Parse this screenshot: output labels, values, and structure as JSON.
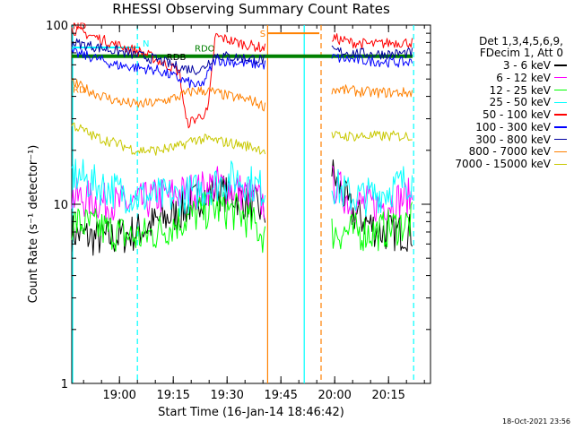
{
  "chart_data": {
    "type": "line",
    "title": "RHESSI Observing Summary Count Rates",
    "xlabel": "Start Time (16-Jan-14 18:46:42)",
    "ylabel": "Count Rate (s⁻¹ detector⁻¹)",
    "y_scale": "log",
    "ylim": [
      1,
      100
    ],
    "xlim_minutes_after_start": [
      0,
      100
    ],
    "x_tick_labels": [
      "19:00",
      "19:15",
      "19:30",
      "19:45",
      "20:00",
      "20:15"
    ],
    "y_tick_labels": [
      "1",
      "10",
      "100"
    ],
    "legend_header": [
      "Det 1,3,4,5,6,9,",
      "FDecim 1, Att 0"
    ],
    "legend_position": "right",
    "timestamp": "18-Oct-2021 23:56",
    "flag_labels": {
      "N": "N",
      "S": "S",
      "RDO": "RDO",
      "RD": "RD",
      "ND": "ND",
      "RDB": "RDB"
    },
    "data_gaps_minutes": [
      [
        54.6,
        72.5
      ]
    ],
    "series": [
      {
        "name": "3 - 6 keV",
        "color": "#000000",
        "segments": [
          {
            "x": [
              0,
              6,
              12,
              18,
              24,
              30,
              36,
              40,
              46,
              50,
              54
            ],
            "y": [
              7,
              6.5,
              6.5,
              7,
              8,
              9,
              11,
              12,
              11,
              10,
              9
            ]
          },
          {
            "x": [
              72.5,
              75,
              78,
              82,
              86,
              90,
              95
            ],
            "y": [
              15,
              12,
              9,
              8,
              7,
              7,
              7
            ]
          }
        ]
      },
      {
        "name": "6 - 12 keV",
        "color": "#ff00ff",
        "segments": [
          {
            "x": [
              0,
              6,
              12,
              18,
              24,
              30,
              36,
              40,
              46,
              50,
              54
            ],
            "y": [
              11,
              10.5,
              10,
              10,
              11,
              11.5,
              12,
              13,
              12,
              11,
              10
            ]
          },
          {
            "x": [
              72.5,
              75,
              78,
              82,
              86,
              90,
              95
            ],
            "y": [
              13,
              12,
              10,
              10,
              10,
              10.5,
              11
            ]
          }
        ]
      },
      {
        "name": "12 - 25 keV",
        "color": "#00ff00",
        "segments": [
          {
            "x": [
              0,
              6,
              12,
              18,
              24,
              30,
              36,
              40,
              46,
              50,
              54
            ],
            "y": [
              8,
              7.5,
              7,
              6.5,
              7,
              8,
              9,
              9.5,
              9,
              8,
              6.5
            ]
          },
          {
            "x": [
              72.5,
              76,
              80,
              85,
              90,
              95
            ],
            "y": [
              7,
              7,
              7,
              7,
              7.5,
              8
            ]
          }
        ]
      },
      {
        "name": "25 - 50 keV",
        "color": "#00ffff",
        "segments": [
          {
            "x": [
              0,
              6,
              12,
              18,
              24,
              30,
              36,
              40,
              46,
              50,
              54
            ],
            "y": [
              15,
              13,
              12,
              11,
              11,
              11,
              12,
              13,
              14,
              13,
              12
            ]
          },
          {
            "x": [
              72.5,
              75,
              78,
              82,
              86,
              90,
              95
            ],
            "y": [
              13,
              12,
              11,
              11,
              11.5,
              12.5,
              14
            ]
          }
        ]
      },
      {
        "name": "50 - 100 keV",
        "color": "#ff0000",
        "segments": [
          {
            "x": [
              0,
              5,
              12,
              20,
              30,
              32,
              38,
              40,
              46,
              54
            ],
            "y": [
              95,
              88,
              78,
              70,
              55,
              28,
              33,
              87,
              80,
              74
            ]
          },
          {
            "x": [
              72.5,
              78,
              84,
              90,
              95
            ],
            "y": [
              85,
              80,
              78,
              80,
              80
            ]
          }
        ]
      },
      {
        "name": "100 - 300 keV",
        "color": "#0000ff",
        "segments": [
          {
            "x": [
              0,
              6,
              12,
              18,
              24,
              30,
              36,
              40,
              46,
              54
            ],
            "y": [
              70,
              66,
              60,
              58,
              56,
              50,
              45,
              64,
              62,
              60
            ]
          },
          {
            "x": [
              72.5,
              78,
              84,
              90,
              95
            ],
            "y": [
              66,
              64,
              63,
              62,
              62
            ]
          }
        ]
      },
      {
        "name": "300 - 800 keV",
        "color": "#0000a0",
        "segments": [
          {
            "x": [
              0,
              6,
              12,
              18,
              24,
              30,
              36,
              40,
              46,
              54
            ],
            "y": [
              80,
              76,
              72,
              68,
              64,
              58,
              56,
              68,
              66,
              64
            ]
          },
          {
            "x": [
              72.5,
              78,
              84,
              90,
              95
            ],
            "y": [
              72,
              70,
              69,
              69,
              70
            ]
          }
        ]
      },
      {
        "name": "800 - 7000 keV",
        "color": "#ff8000",
        "segments": [
          {
            "x": [
              0,
              6,
              12,
              18,
              24,
              30,
              34,
              38,
              44,
              50,
              54
            ],
            "y": [
              48,
              42,
              38,
              36,
              37,
              40,
              43,
              43,
              40,
              38,
              35
            ]
          },
          {
            "x": [
              72.5,
              78,
              84,
              90,
              95
            ],
            "y": [
              44,
              43,
              42,
              42,
              42
            ]
          }
        ]
      },
      {
        "name": "7000 - 15000 keV",
        "color": "#c8c800",
        "segments": [
          {
            "x": [
              0,
              6,
              12,
              18,
              24,
              30,
              34,
              38,
              44,
              50,
              54
            ],
            "y": [
              28,
              24,
              22,
              20,
              20,
              21,
              23,
              23,
              22,
              21,
              20
            ]
          },
          {
            "x": [
              72.5,
              78,
              84,
              90,
              95
            ],
            "y": [
              24,
              24,
              24,
              24,
              24
            ]
          }
        ]
      }
    ],
    "flags": [
      {
        "label": "S",
        "color": "#ff8000",
        "x_range": [
          54.6,
          69
        ],
        "y": 90
      },
      {
        "label": "N",
        "color": "#00ffff",
        "x_range": [
          0,
          19
        ],
        "y": 75
      },
      {
        "label": "RDO",
        "color": "#008000",
        "x_range": [
          0,
          95
        ],
        "y": 67
      }
    ]
  }
}
